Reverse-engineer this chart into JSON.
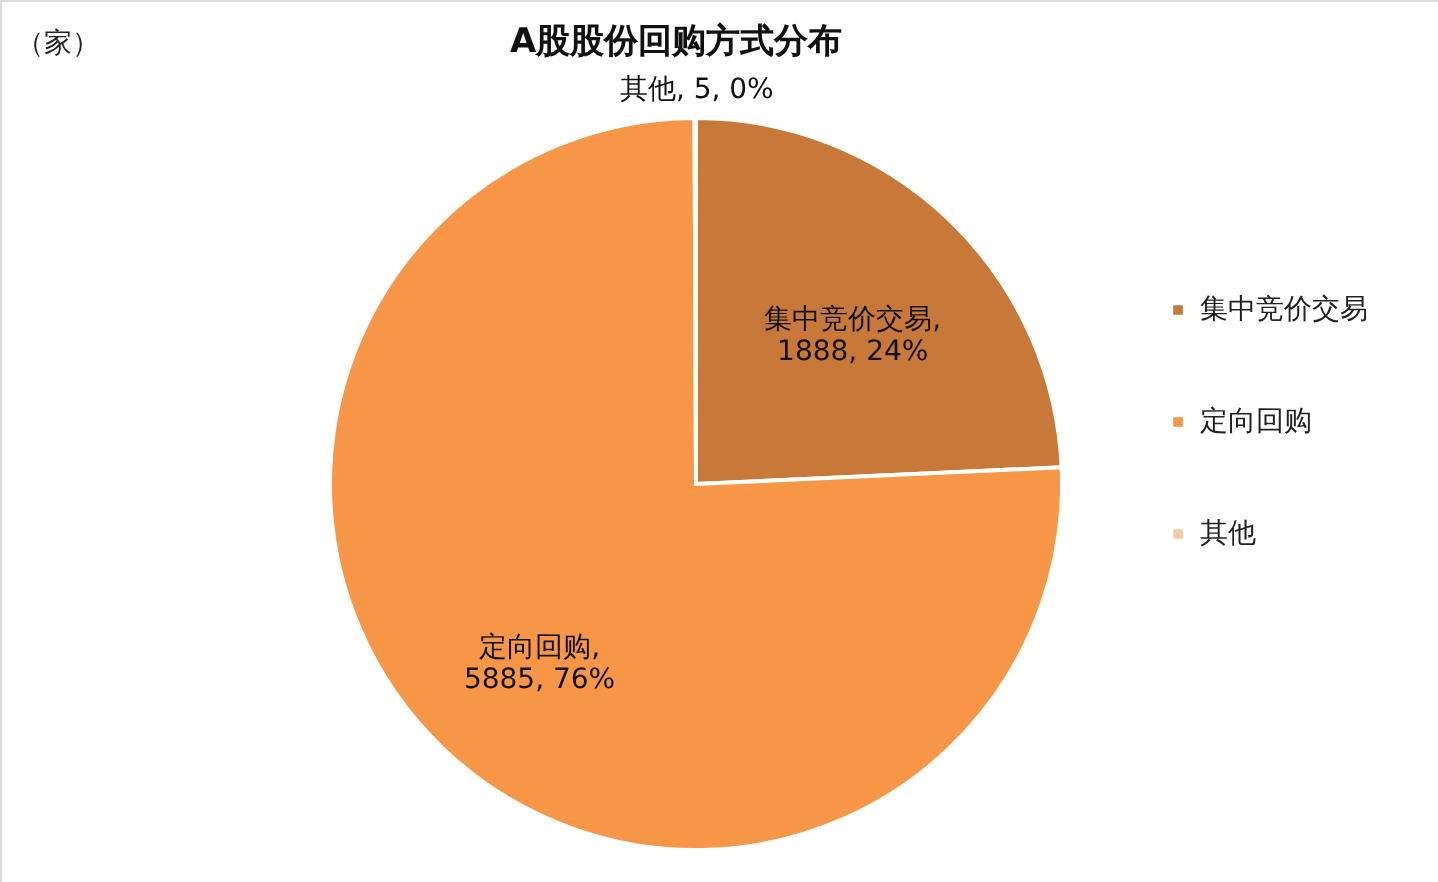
{
  "chart_data": {
    "type": "pie",
    "title": "A股股份回购方式分布",
    "annotations": [
      "（家）"
    ],
    "categories": [
      "集中竞价交易",
      "定向回购",
      "其他"
    ],
    "values": [
      1888,
      5885,
      5
    ],
    "colors": [
      "#c8793a",
      "#f79646",
      "#fac8a0"
    ],
    "value_labels": [
      "集中竞价交易, 1888, 24%",
      "定向回购, 5885, 76%",
      "其他, 5, 0%"
    ],
    "legend": "right"
  }
}
